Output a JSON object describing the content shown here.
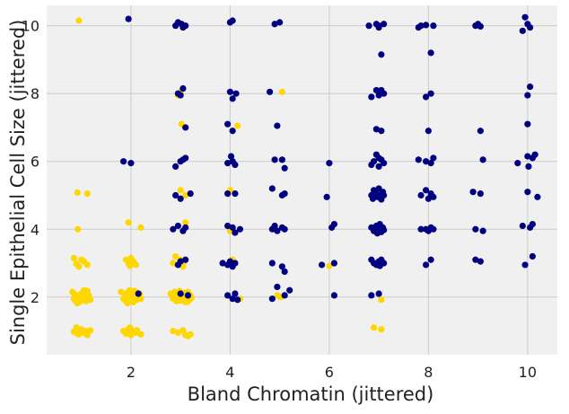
{
  "chart_data": {
    "type": "scatter",
    "title": "",
    "xlabel": "Bland Chromatin (jittered)",
    "ylabel": "Single Epithelial Cell Size (jittered)",
    "xlim": [
      0.3,
      10.6
    ],
    "ylim": [
      0.3,
      10.6
    ],
    "xticks": [
      2,
      4,
      6,
      8,
      10
    ],
    "yticks": [
      2,
      4,
      6,
      8,
      10
    ],
    "grid": true,
    "colors": {
      "navy": "#000080",
      "gold": "#ffd700",
      "background": "#f0f0f0",
      "grid": "#cbcbcb"
    },
    "series": [
      {
        "color": "#ffd700",
        "points": [
          [
            0.95,
            10.15
          ],
          [
            0.92,
            5.08
          ],
          [
            1.12,
            5.05
          ],
          [
            0.93,
            4.0
          ],
          [
            0.85,
            3.15
          ],
          [
            0.9,
            2.98
          ],
          [
            1.0,
            3.1
          ],
          [
            1.12,
            2.95
          ],
          [
            0.95,
            2.9
          ],
          [
            1.05,
            3.05
          ],
          [
            0.82,
            2.15
          ],
          [
            0.88,
            1.9
          ],
          [
            0.9,
            2.05
          ],
          [
            0.95,
            1.85
          ],
          [
            1.0,
            2.1
          ],
          [
            1.02,
            1.95
          ],
          [
            1.05,
            2.2
          ],
          [
            1.1,
            1.88
          ],
          [
            1.15,
            2.05
          ],
          [
            1.18,
            1.92
          ],
          [
            0.85,
            1.95
          ],
          [
            0.98,
            2.0
          ],
          [
            1.08,
            2.1
          ],
          [
            0.92,
            1.82
          ],
          [
            1.12,
            2.18
          ],
          [
            1.0,
            1.9
          ],
          [
            0.87,
            2.08
          ],
          [
            1.14,
            1.97
          ],
          [
            0.85,
            0.98
          ],
          [
            0.9,
            1.1
          ],
          [
            0.95,
            0.9
          ],
          [
            1.0,
            1.05
          ],
          [
            1.05,
            0.95
          ],
          [
            1.12,
            0.88
          ],
          [
            1.18,
            1.02
          ],
          [
            0.92,
            0.92
          ],
          [
            1.08,
            1.0
          ],
          [
            3.0,
            8.05
          ],
          [
            2.95,
            7.95
          ],
          [
            3.02,
            7.1
          ],
          [
            4.15,
            7.05
          ],
          [
            3.0,
            5.15
          ],
          [
            3.1,
            5.0
          ],
          [
            4.0,
            5.15
          ],
          [
            1.95,
            4.2
          ],
          [
            2.2,
            4.05
          ],
          [
            3.1,
            4.2
          ],
          [
            4.0,
            3.95
          ],
          [
            1.9,
            3.1
          ],
          [
            1.95,
            3.0
          ],
          [
            2.0,
            3.15
          ],
          [
            2.05,
            3.05
          ],
          [
            2.1,
            2.95
          ],
          [
            1.98,
            2.92
          ],
          [
            2.02,
            3.08
          ],
          [
            2.85,
            3.0
          ],
          [
            2.9,
            3.2
          ],
          [
            3.0,
            3.1
          ],
          [
            3.05,
            2.9
          ],
          [
            3.08,
            3.05
          ],
          [
            4.05,
            3.1
          ],
          [
            1.8,
            2.15
          ],
          [
            1.85,
            1.95
          ],
          [
            1.88,
            2.05
          ],
          [
            1.9,
            1.88
          ],
          [
            1.92,
            2.12
          ],
          [
            1.95,
            1.98
          ],
          [
            1.97,
            2.2
          ],
          [
            2.0,
            1.9
          ],
          [
            2.02,
            2.08
          ],
          [
            2.05,
            1.85
          ],
          [
            2.08,
            2.0
          ],
          [
            2.1,
            2.15
          ],
          [
            2.12,
            1.92
          ],
          [
            2.15,
            2.05
          ],
          [
            2.18,
            2.1
          ],
          [
            2.2,
            1.95
          ],
          [
            1.93,
            1.82
          ],
          [
            2.07,
            2.18
          ],
          [
            2.8,
            2.1
          ],
          [
            2.85,
            1.95
          ],
          [
            2.88,
            2.15
          ],
          [
            2.92,
            1.88
          ],
          [
            2.95,
            2.05
          ],
          [
            2.98,
            2.18
          ],
          [
            3.0,
            1.9
          ],
          [
            3.02,
            2.1
          ],
          [
            3.05,
            1.95
          ],
          [
            3.08,
            2.12
          ],
          [
            3.1,
            1.85
          ],
          [
            3.12,
            2.02
          ],
          [
            3.15,
            2.15
          ],
          [
            3.18,
            1.92
          ],
          [
            3.2,
            2.05
          ],
          [
            3.22,
            1.98
          ],
          [
            2.9,
            2.0
          ],
          [
            3.14,
            1.86
          ],
          [
            4.2,
            1.95
          ],
          [
            4.95,
            2.05
          ],
          [
            5.02,
            2.0
          ],
          [
            6.0,
            2.92
          ],
          [
            7.05,
            1.92
          ],
          [
            1.85,
            1.0
          ],
          [
            1.9,
            0.92
          ],
          [
            1.95,
            1.05
          ],
          [
            2.0,
            0.88
          ],
          [
            2.05,
            1.0
          ],
          [
            2.1,
            0.95
          ],
          [
            2.2,
            0.9
          ],
          [
            1.98,
            1.1
          ],
          [
            2.12,
            1.02
          ],
          [
            2.85,
            1.0
          ],
          [
            2.95,
            0.95
          ],
          [
            3.05,
            1.02
          ],
          [
            3.1,
            0.88
          ],
          [
            3.2,
            0.9
          ],
          [
            3.15,
            0.85
          ],
          [
            6.9,
            1.1
          ],
          [
            7.05,
            1.05
          ],
          [
            5.05,
            8.05
          ]
        ]
      },
      {
        "color": "#000080",
        "points": [
          [
            1.95,
            10.2
          ],
          [
            2.9,
            10.0
          ],
          [
            2.95,
            10.1
          ],
          [
            3.05,
            9.95
          ],
          [
            3.1,
            10.0
          ],
          [
            3.02,
            10.05
          ],
          [
            4.0,
            10.1
          ],
          [
            4.05,
            10.15
          ],
          [
            4.9,
            10.05
          ],
          [
            5.0,
            10.1
          ],
          [
            6.8,
            10.0
          ],
          [
            6.95,
            10.05
          ],
          [
            7.0,
            9.95
          ],
          [
            7.1,
            10.05
          ],
          [
            7.0,
            10.0
          ],
          [
            7.8,
            9.95
          ],
          [
            7.85,
            10.0
          ],
          [
            7.95,
            10.02
          ],
          [
            8.1,
            10.0
          ],
          [
            8.95,
            10.0
          ],
          [
            9.0,
            10.05
          ],
          [
            9.05,
            9.98
          ],
          [
            9.9,
            9.85
          ],
          [
            9.95,
            10.25
          ],
          [
            10.0,
            10.05
          ],
          [
            10.05,
            9.95
          ],
          [
            7.05,
            9.15
          ],
          [
            8.05,
            9.2
          ],
          [
            2.95,
            8.0
          ],
          [
            3.05,
            8.15
          ],
          [
            3.0,
            7.95
          ],
          [
            4.0,
            8.05
          ],
          [
            4.12,
            8.0
          ],
          [
            4.05,
            7.85
          ],
          [
            4.8,
            8.05
          ],
          [
            6.85,
            7.9
          ],
          [
            6.95,
            8.1
          ],
          [
            7.05,
            8.1
          ],
          [
            7.1,
            8.0
          ],
          [
            7.0,
            7.95
          ],
          [
            7.95,
            7.9
          ],
          [
            8.05,
            8.0
          ],
          [
            10.0,
            7.95
          ],
          [
            10.05,
            8.2
          ],
          [
            3.1,
            7.0
          ],
          [
            3.95,
            7.1
          ],
          [
            4.05,
            6.9
          ],
          [
            4.95,
            7.05
          ],
          [
            6.95,
            6.95
          ],
          [
            7.05,
            6.9
          ],
          [
            8.0,
            6.9
          ],
          [
            9.05,
            6.9
          ],
          [
            10.0,
            7.1
          ],
          [
            1.85,
            6.0
          ],
          [
            2.0,
            5.95
          ],
          [
            2.9,
            5.85
          ],
          [
            3.05,
            6.05
          ],
          [
            3.1,
            6.1
          ],
          [
            3.0,
            6.0
          ],
          [
            3.95,
            5.95
          ],
          [
            4.02,
            6.15
          ],
          [
            4.05,
            6.0
          ],
          [
            4.1,
            5.9
          ],
          [
            4.9,
            6.05
          ],
          [
            5.05,
            6.05
          ],
          [
            5.1,
            5.8
          ],
          [
            6.0,
            5.95
          ],
          [
            6.85,
            5.9
          ],
          [
            6.9,
            6.0
          ],
          [
            6.95,
            6.2
          ],
          [
            7.0,
            6.1
          ],
          [
            7.05,
            6.05
          ],
          [
            7.1,
            5.95
          ],
          [
            7.0,
            5.85
          ],
          [
            7.8,
            6.05
          ],
          [
            7.95,
            6.0
          ],
          [
            8.05,
            5.95
          ],
          [
            8.1,
            6.1
          ],
          [
            9.1,
            6.05
          ],
          [
            9.8,
            5.95
          ],
          [
            10.0,
            6.15
          ],
          [
            10.02,
            5.85
          ],
          [
            10.1,
            6.1
          ],
          [
            10.15,
            6.2
          ],
          [
            2.9,
            5.0
          ],
          [
            3.0,
            4.9
          ],
          [
            3.2,
            5.05
          ],
          [
            3.95,
            5.05
          ],
          [
            4.1,
            5.05
          ],
          [
            4.85,
            5.2
          ],
          [
            5.05,
            5.0
          ],
          [
            5.1,
            5.05
          ],
          [
            5.95,
            4.95
          ],
          [
            6.85,
            5.0
          ],
          [
            6.88,
            4.9
          ],
          [
            6.9,
            5.15
          ],
          [
            6.95,
            5.05
          ],
          [
            6.98,
            4.95
          ],
          [
            7.0,
            5.2
          ],
          [
            7.02,
            5.0
          ],
          [
            7.05,
            4.88
          ],
          [
            7.08,
            5.1
          ],
          [
            7.1,
            5.0
          ],
          [
            7.85,
            5.0
          ],
          [
            7.95,
            5.15
          ],
          [
            8.0,
            4.9
          ],
          [
            8.05,
            5.05
          ],
          [
            8.1,
            4.95
          ],
          [
            8.9,
            5.1
          ],
          [
            9.05,
            5.05
          ],
          [
            10.0,
            5.1
          ],
          [
            10.2,
            4.95
          ],
          [
            2.85,
            4.0
          ],
          [
            2.95,
            4.1
          ],
          [
            3.05,
            3.95
          ],
          [
            3.1,
            4.05
          ],
          [
            3.95,
            4.1
          ],
          [
            4.05,
            4.05
          ],
          [
            4.1,
            3.9
          ],
          [
            4.2,
            4.0
          ],
          [
            4.85,
            4.0
          ],
          [
            4.9,
            4.1
          ],
          [
            4.95,
            3.95
          ],
          [
            5.05,
            4.05
          ],
          [
            5.1,
            4.0
          ],
          [
            6.05,
            4.05
          ],
          [
            6.1,
            4.15
          ],
          [
            6.85,
            4.05
          ],
          [
            6.9,
            3.95
          ],
          [
            6.95,
            4.1
          ],
          [
            6.97,
            3.88
          ],
          [
            7.0,
            4.0
          ],
          [
            7.02,
            4.15
          ],
          [
            7.05,
            3.92
          ],
          [
            7.08,
            4.05
          ],
          [
            7.1,
            3.98
          ],
          [
            7.85,
            4.0
          ],
          [
            7.95,
            4.0
          ],
          [
            8.0,
            3.95
          ],
          [
            8.05,
            4.05
          ],
          [
            8.1,
            4.0
          ],
          [
            8.95,
            4.0
          ],
          [
            9.1,
            3.95
          ],
          [
            9.9,
            4.1
          ],
          [
            10.05,
            4.05
          ],
          [
            10.1,
            4.15
          ],
          [
            2.95,
            2.95
          ],
          [
            3.0,
            3.05
          ],
          [
            3.1,
            3.1
          ],
          [
            3.85,
            3.0
          ],
          [
            3.95,
            2.95
          ],
          [
            4.0,
            3.05
          ],
          [
            4.05,
            2.9
          ],
          [
            4.1,
            3.0
          ],
          [
            4.85,
            3.0
          ],
          [
            5.05,
            2.9
          ],
          [
            5.1,
            2.75
          ],
          [
            5.85,
            2.95
          ],
          [
            6.1,
            3.0
          ],
          [
            6.85,
            3.1
          ],
          [
            6.9,
            3.0
          ],
          [
            6.95,
            2.95
          ],
          [
            7.0,
            3.05
          ],
          [
            7.05,
            3.1
          ],
          [
            7.1,
            3.0
          ],
          [
            7.02,
            2.92
          ],
          [
            7.95,
            2.95
          ],
          [
            8.05,
            3.1
          ],
          [
            8.95,
            3.1
          ],
          [
            9.05,
            3.05
          ],
          [
            9.95,
            2.95
          ],
          [
            10.1,
            3.2
          ],
          [
            3.0,
            2.1
          ],
          [
            3.15,
            2.05
          ],
          [
            2.15,
            2.1
          ],
          [
            3.95,
            2.05
          ],
          [
            4.05,
            1.95
          ],
          [
            4.1,
            2.1
          ],
          [
            4.15,
            1.92
          ],
          [
            4.85,
            1.95
          ],
          [
            4.95,
            2.3
          ],
          [
            5.1,
            2.05
          ],
          [
            5.2,
            2.2
          ],
          [
            6.1,
            2.05
          ],
          [
            6.85,
            2.05
          ],
          [
            7.0,
            2.1
          ]
        ]
      }
    ]
  }
}
